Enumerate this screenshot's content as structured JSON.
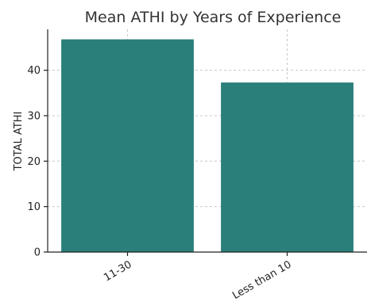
{
  "chart_data": {
    "type": "bar",
    "title": "Mean ATHI by Years of Experience",
    "xlabel": "",
    "ylabel": "TOTAL ATHI",
    "categories": [
      "11-30",
      "Less than 10"
    ],
    "values": [
      46.8,
      37.3
    ],
    "ylim": [
      0,
      49
    ],
    "yticks": [
      0,
      10,
      20,
      30,
      40
    ],
    "bar_color": "#2a7f7a",
    "grid": true,
    "legend": "none"
  }
}
